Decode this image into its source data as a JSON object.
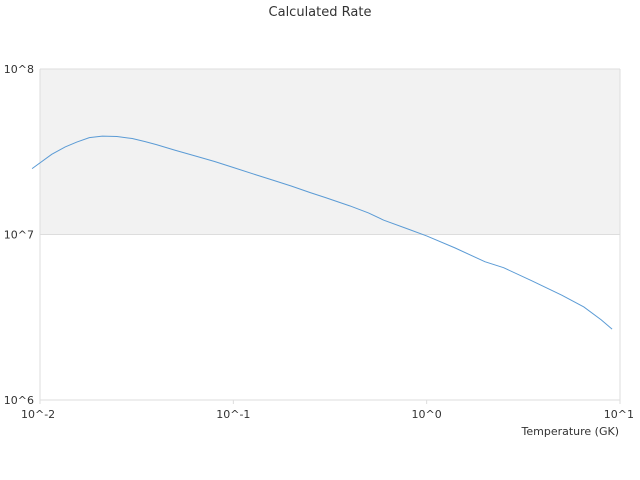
{
  "chart_data": {
    "type": "line",
    "title": "Calculated Rate",
    "xlabel": "Temperature (GK)",
    "ylabel": "",
    "x_scale": "log",
    "y_scale": "log",
    "xlim": [
      0.01,
      10
    ],
    "ylim": [
      1000000,
      100000000
    ],
    "x_ticks": [
      {
        "value": 0.01,
        "label": "10^-2"
      },
      {
        "value": 0.1,
        "label": "10^-1"
      },
      {
        "value": 1,
        "label": "10^0"
      },
      {
        "value": 10,
        "label": "10^1"
      }
    ],
    "y_ticks": [
      {
        "value": 1000000,
        "label": "10^6"
      },
      {
        "value": 10000000,
        "label": "10^7"
      },
      {
        "value": 100000000,
        "label": "10^8"
      }
    ],
    "shaded_band": {
      "from": 10000000,
      "to": 100000000,
      "color": "#f2f2f2"
    },
    "grid": true,
    "legend": "none",
    "colors": {
      "line": "#5b9bd5",
      "grid": "#dddddd"
    },
    "series": [
      {
        "x": [
          0.0091,
          0.0115,
          0.0135,
          0.0155,
          0.018,
          0.021,
          0.025,
          0.03,
          0.035,
          0.04,
          0.05,
          0.065,
          0.08,
          0.1,
          0.13,
          0.16,
          0.2,
          0.25,
          0.3,
          0.4,
          0.5,
          0.6,
          0.8,
          1.0,
          1.4,
          2.0,
          2.5,
          3.5,
          5.0,
          6.5,
          8.0,
          9.1
        ],
        "values": [
          25000000,
          30500000,
          33800000,
          36200000,
          38500000,
          39300000,
          39100000,
          38000000,
          36400000,
          34900000,
          32300000,
          29600000,
          27600000,
          25400000,
          23000000,
          21300000,
          19600000,
          17900000,
          16700000,
          14900000,
          13500000,
          12200000,
          10800000,
          9800000,
          8300000,
          6850000,
          6300000,
          5250000,
          4300000,
          3650000,
          3050000,
          2680000
        ]
      }
    ]
  }
}
